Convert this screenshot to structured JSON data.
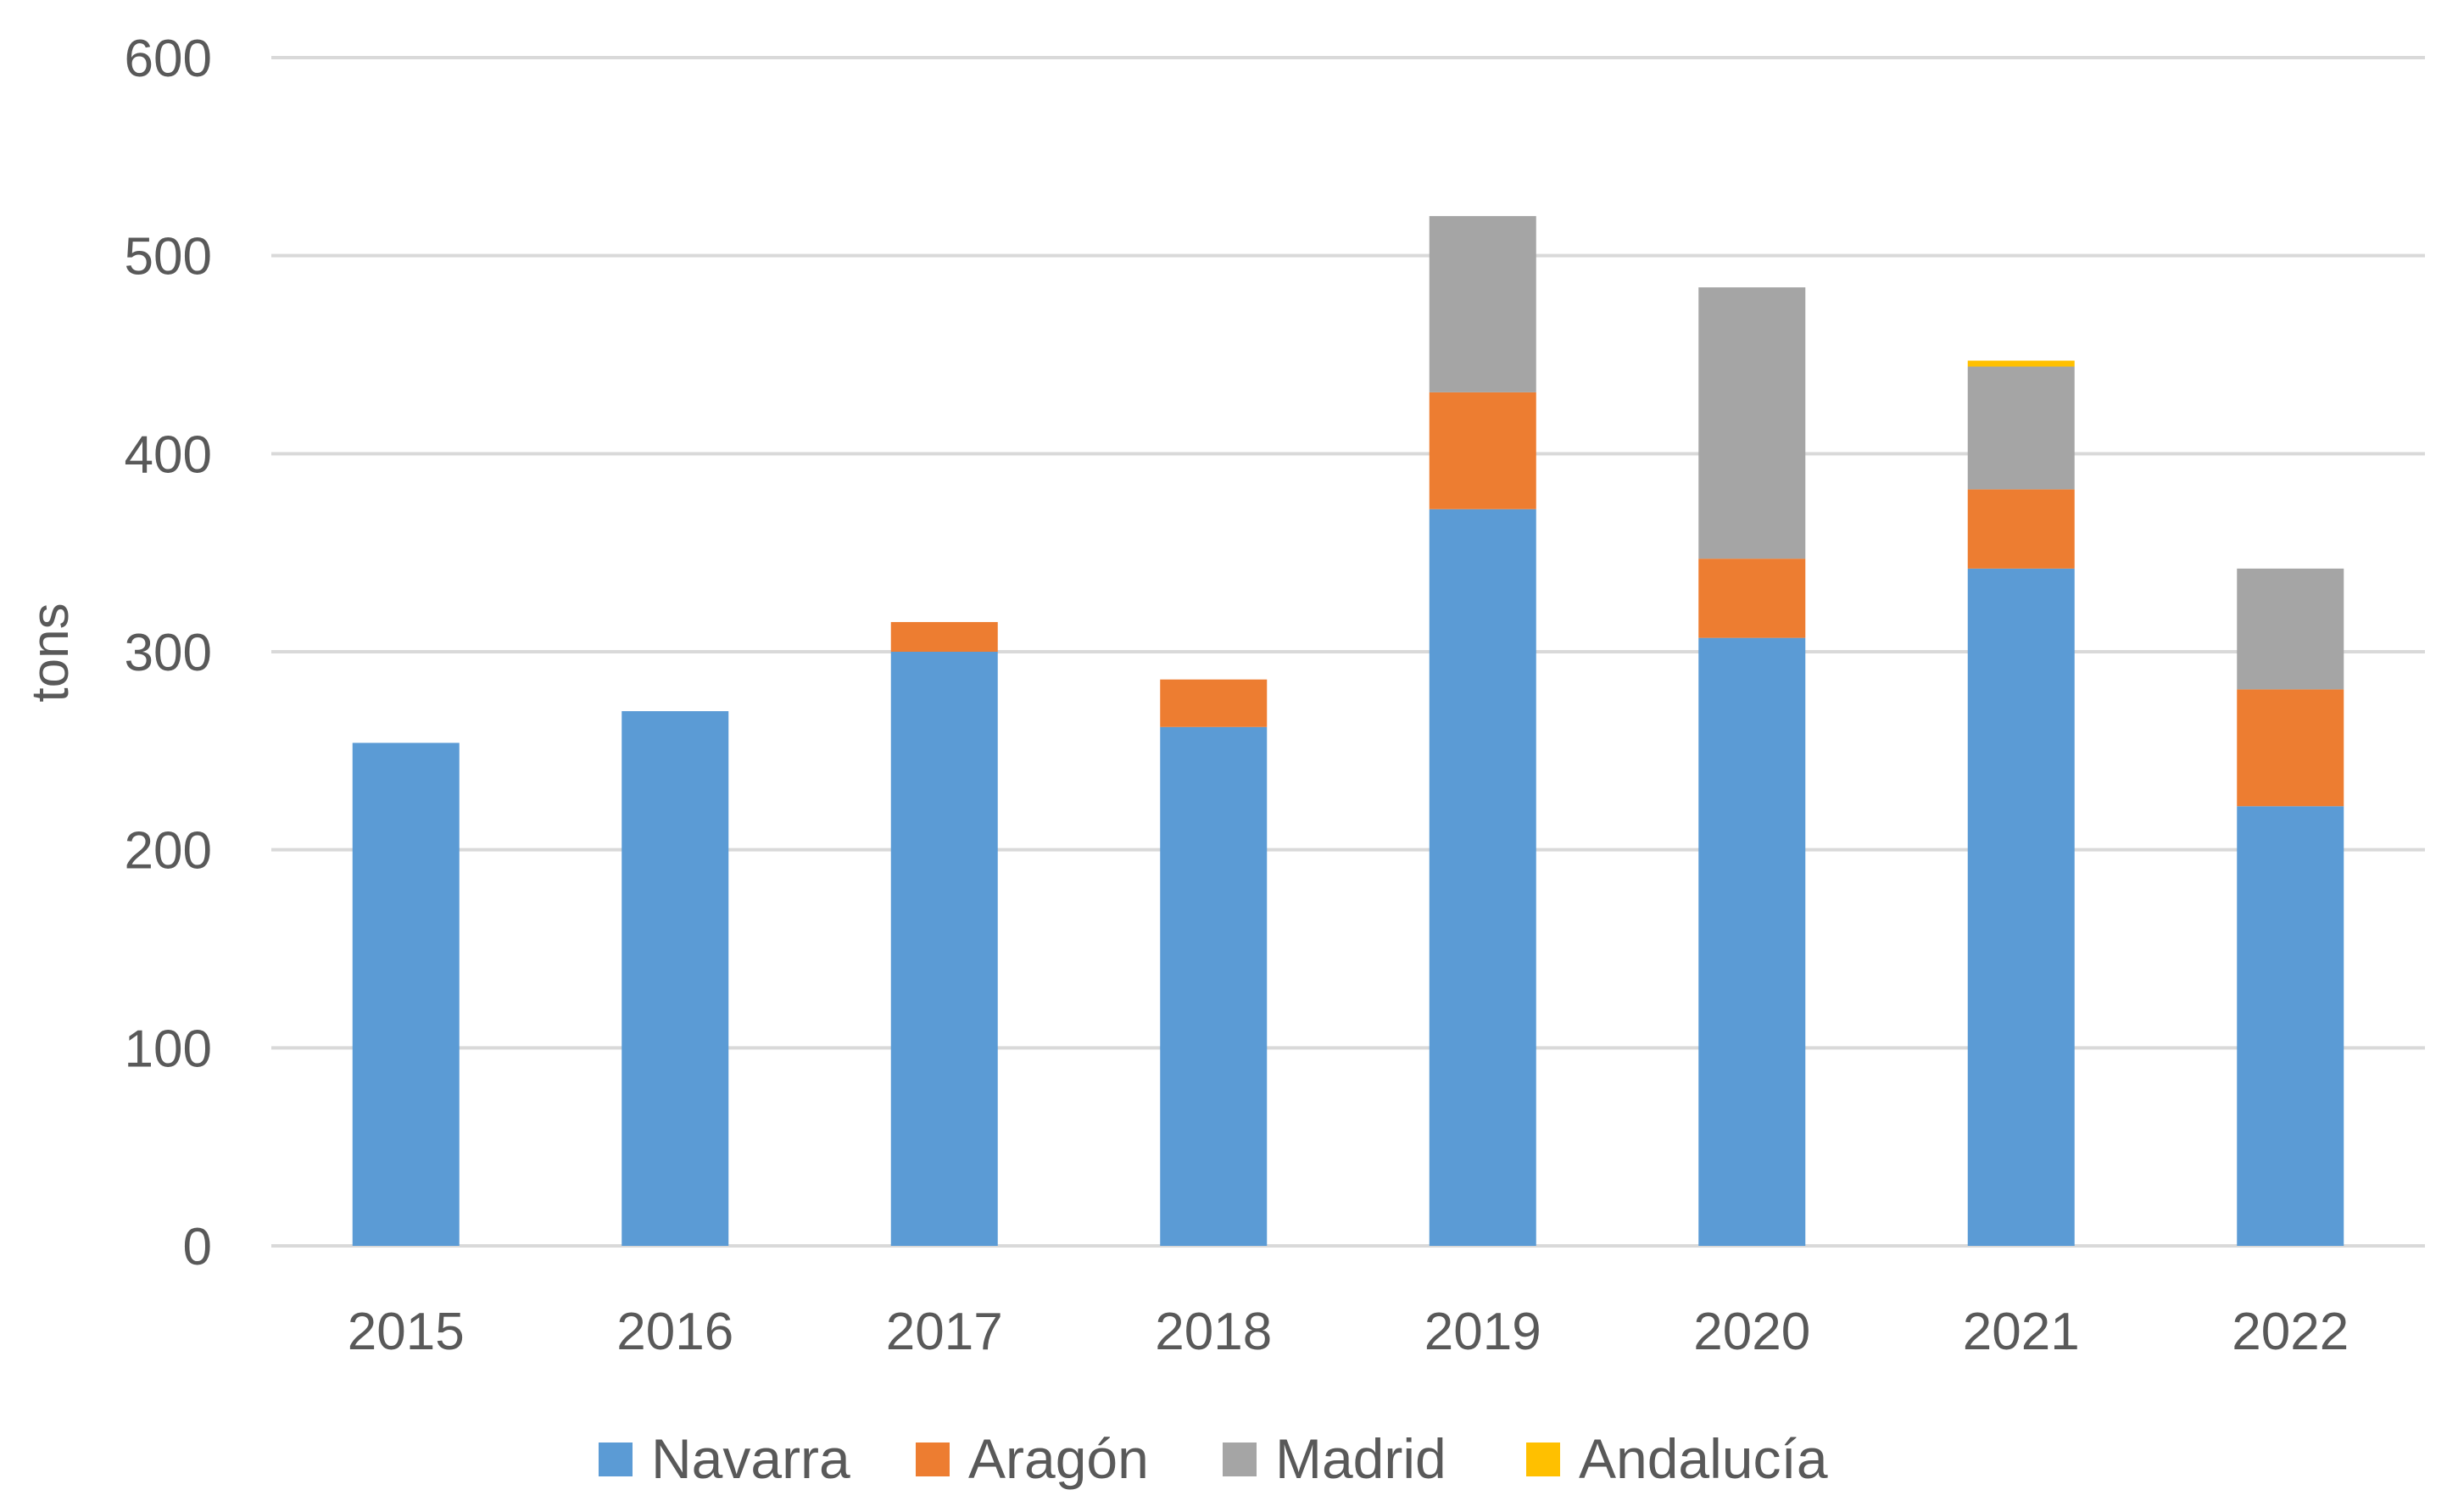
{
  "chart_data": {
    "type": "bar",
    "stacked": true,
    "title": "",
    "xlabel": "",
    "ylabel": "tons",
    "ylim": [
      0,
      600
    ],
    "yticks": [
      0,
      100,
      200,
      300,
      400,
      500,
      600
    ],
    "grid": true,
    "legend_position": "bottom",
    "categories": [
      "2015",
      "2016",
      "2017",
      "2018",
      "2019",
      "2020",
      "2021",
      "2022"
    ],
    "series": [
      {
        "name": "Navarra",
        "color": "#5B9BD5",
        "values": [
          254,
          270,
          300,
          262,
          372,
          307,
          342,
          222
        ]
      },
      {
        "name": "Aragón",
        "color": "#ED7D31",
        "values": [
          0,
          0,
          15,
          24,
          59,
          40,
          40,
          59
        ]
      },
      {
        "name": "Madrid",
        "color": "#A5A5A5",
        "values": [
          0,
          0,
          0,
          0,
          89,
          137,
          62,
          61
        ]
      },
      {
        "name": "Andalucía",
        "color": "#FFC000",
        "values": [
          0,
          0,
          0,
          0,
          0,
          0,
          3,
          0
        ]
      }
    ],
    "gridline_color": "#D9D9D9"
  }
}
